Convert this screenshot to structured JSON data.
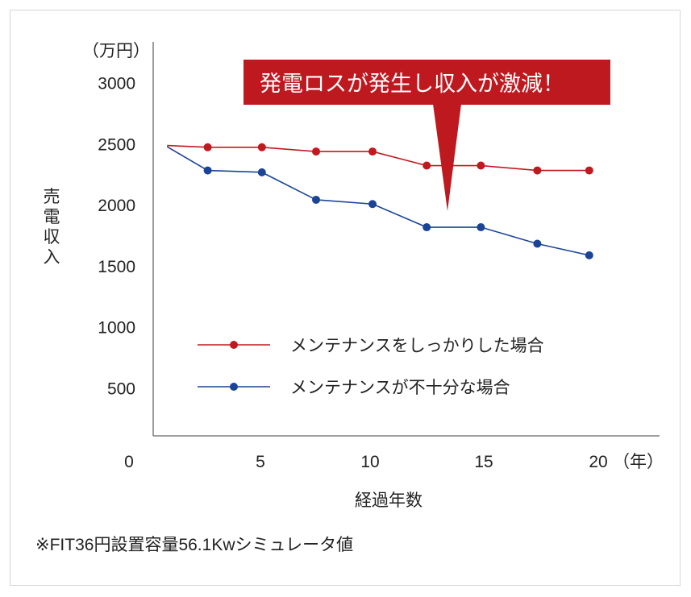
{
  "chart_data": {
    "type": "line",
    "title": "",
    "xlabel": "経過年数",
    "ylabel": "売電収入",
    "y_unit": "（万円）",
    "x_unit": "（年）",
    "xlim": [
      0,
      20
    ],
    "ylim": [
      0,
      3000
    ],
    "x_ticks": [
      "0",
      "5",
      "10",
      "15",
      "20"
    ],
    "y_ticks": [
      "3000",
      "2500",
      "2000",
      "1500",
      "1000",
      "500"
    ],
    "x": [
      0.9,
      2.7,
      5.1,
      7.5,
      10,
      12.4,
      14.8,
      17.3,
      19.6
    ],
    "series": [
      {
        "name": "メンテナンスをしっかりした場合",
        "color": "#c0191f",
        "values": [
          2485,
          2470,
          2470,
          2435,
          2435,
          2320,
          2320,
          2280,
          2280
        ]
      },
      {
        "name": "メンテナンスが不十分な場合",
        "color": "#1b4496",
        "values": [
          2475,
          2280,
          2265,
          2040,
          2005,
          1815,
          1815,
          1680,
          1585
        ]
      }
    ],
    "legend": "center",
    "grid": false,
    "annotation": "発電ロスが発生し収入が激減！"
  },
  "note": "※FIT36円設置容量56.1Kwシミュレータ値"
}
